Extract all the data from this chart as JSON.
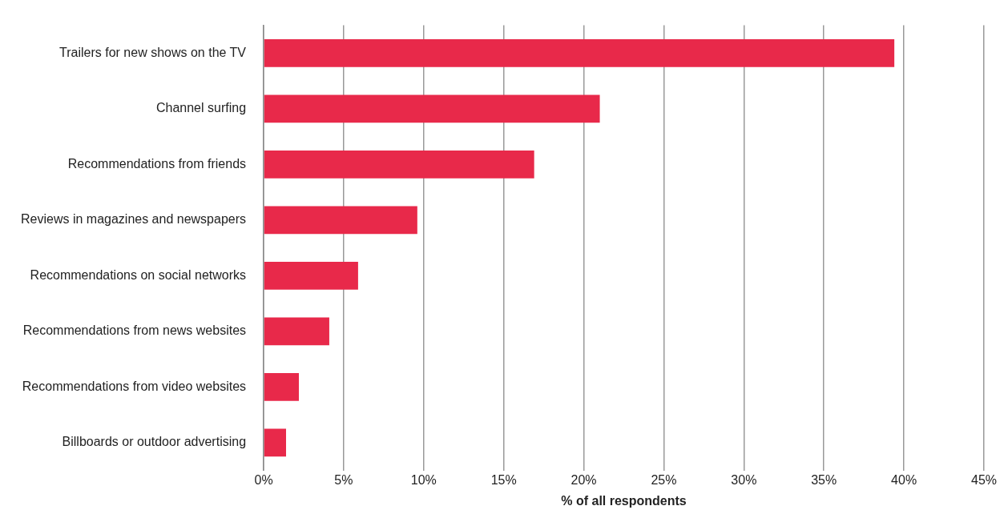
{
  "chart_data": {
    "type": "bar",
    "orientation": "horizontal",
    "xlabel": "% of all respondents",
    "categories": [
      "Trailers for new shows on the TV",
      "Channel surfing",
      "Recommendations from friends",
      "Reviews in magazines and newspapers",
      "Recommendations on social networks",
      "Recommendations from news websites",
      "Recommendations from video websites",
      "Billboards or outdoor advertising"
    ],
    "values": [
      39.4,
      21.0,
      16.9,
      9.6,
      5.9,
      4.1,
      2.2,
      1.4
    ],
    "color": "#e8294a",
    "xlim": [
      0,
      45
    ],
    "xticks": [
      {
        "value": 0,
        "label": "0%"
      },
      {
        "value": 5,
        "label": "5%"
      },
      {
        "value": 10,
        "label": "10%"
      },
      {
        "value": 15,
        "label": "15%"
      },
      {
        "value": 20,
        "label": "20%"
      },
      {
        "value": 25,
        "label": "25%"
      },
      {
        "value": 30,
        "label": "30%"
      },
      {
        "value": 35,
        "label": "35%"
      },
      {
        "value": 40,
        "label": "40%"
      },
      {
        "value": 45,
        "label": "45%"
      }
    ],
    "grid": "x",
    "legend": false
  }
}
